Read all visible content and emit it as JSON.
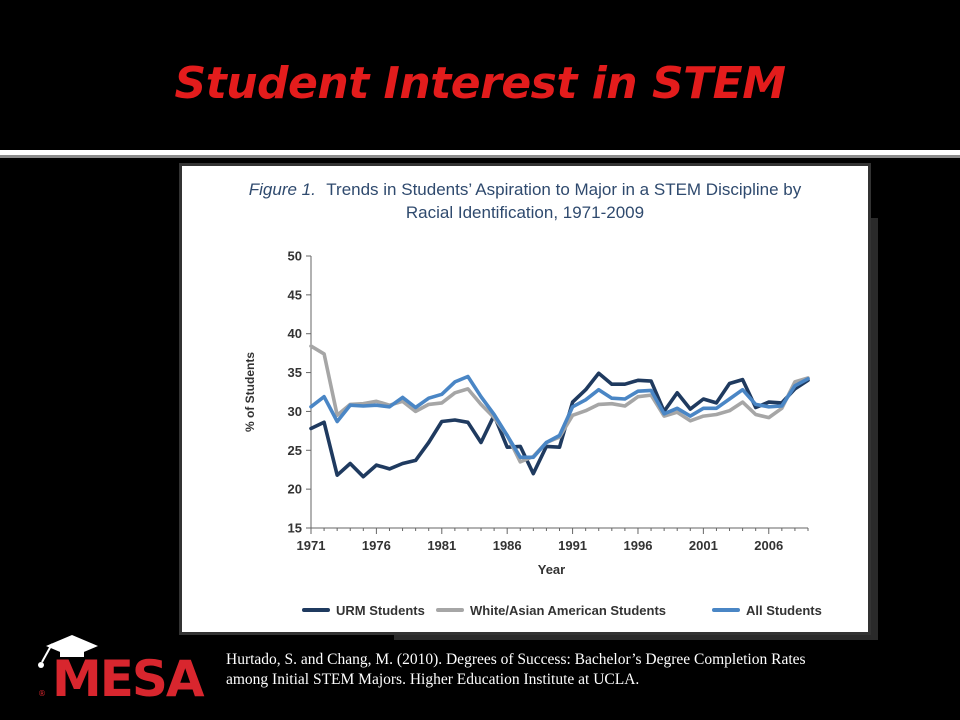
{
  "slide": {
    "title": "Student Interest in STEM"
  },
  "figure": {
    "label": "Figure 1.",
    "title_line1": "Trends in Students’ Aspiration to Major in a STEM Discipline by",
    "title_line2": "Racial Identification, 1971-2009"
  },
  "citation": {
    "line1": "Hurtado, S. and Chang, M. (2010). Degrees of Success: Bachelor’s Degree Completion Rates",
    "line2": "among Initial STEM Majors. Higher Education Institute at UCLA."
  },
  "logo": {
    "text": "MESA",
    "registered": "®"
  },
  "colors": {
    "title_red": "#e31c1c",
    "logo_red": "#d8262e",
    "urm": "#1f3a5f",
    "white_asian": "#a6a6a6",
    "all": "#4a86c5"
  },
  "chart_data": {
    "type": "line",
    "xlabel": "Year",
    "ylabel": "% of Students",
    "xlim": [
      1971,
      2009
    ],
    "ylim": [
      15,
      50
    ],
    "yticks": [
      15,
      20,
      25,
      30,
      35,
      40,
      45,
      50
    ],
    "xticks": [
      1971,
      1976,
      1981,
      1986,
      1991,
      1996,
      2001,
      2006
    ],
    "legend_position": "bottom",
    "x": [
      1971,
      1972,
      1973,
      1974,
      1975,
      1976,
      1977,
      1978,
      1979,
      1980,
      1981,
      1982,
      1983,
      1984,
      1985,
      1986,
      1987,
      1988,
      1989,
      1990,
      1991,
      1992,
      1993,
      1994,
      1995,
      1996,
      1997,
      1998,
      1999,
      2000,
      2001,
      2002,
      2003,
      2004,
      2005,
      2006,
      2007,
      2008,
      2009
    ],
    "series": [
      {
        "name": "URM Students",
        "color": "#1f3a5f",
        "values": [
          27.8,
          28.6,
          21.8,
          23.3,
          21.6,
          23.1,
          22.6,
          23.3,
          23.7,
          26.0,
          28.7,
          28.9,
          28.6,
          26.0,
          29.5,
          25.4,
          25.5,
          22.0,
          25.5,
          25.4,
          31.2,
          32.8,
          34.9,
          33.5,
          33.5,
          34.0,
          33.9,
          30.0,
          32.4,
          30.3,
          31.6,
          31.1,
          33.6,
          34.1,
          30.5,
          31.2,
          31.1,
          32.9,
          34.0
        ]
      },
      {
        "name": "White/Asian American Students",
        "color": "#a6a6a6",
        "values": [
          38.4,
          37.4,
          29.5,
          30.9,
          31.0,
          31.3,
          30.8,
          31.3,
          30.0,
          30.9,
          31.1,
          32.4,
          32.9,
          30.9,
          29.2,
          26.9,
          23.5,
          24.2,
          26.0,
          26.7,
          29.5,
          30.1,
          30.9,
          31.0,
          30.7,
          31.9,
          32.1,
          29.4,
          29.9,
          28.8,
          29.4,
          29.6,
          30.1,
          31.2,
          29.6,
          29.2,
          30.4,
          33.8,
          34.3
        ]
      },
      {
        "name": "All Students",
        "color": "#4a86c5",
        "values": [
          30.6,
          31.9,
          28.7,
          30.8,
          30.7,
          30.8,
          30.6,
          31.8,
          30.5,
          31.7,
          32.2,
          33.8,
          34.5,
          31.9,
          29.6,
          26.9,
          24.1,
          24.1,
          26.0,
          26.9,
          30.6,
          31.5,
          32.8,
          31.7,
          31.6,
          32.6,
          32.7,
          29.7,
          30.4,
          29.4,
          30.4,
          30.4,
          31.6,
          32.8,
          30.9,
          30.6,
          30.7,
          33.3,
          34.2
        ]
      }
    ]
  }
}
